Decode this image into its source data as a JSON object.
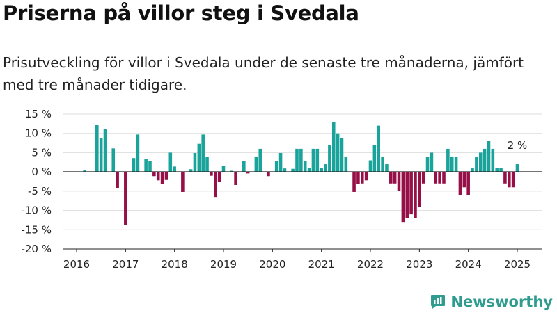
{
  "title": "Priserna på villor steg i Svedala",
  "subtitle": "Prisutveckling för villor i Svedala under de senaste tre månaderna, jämfört med tre månader tidigare.",
  "brand": "Newsworthy",
  "colors": {
    "positive": "#1aa39a",
    "negative": "#960f47",
    "brand": "#2f9c8f",
    "grid": "#dddddd"
  },
  "chart_data": {
    "type": "bar",
    "x_start": "2016-01",
    "x_end": "2025-01",
    "x_ticks": [
      "2016",
      "2017",
      "2018",
      "2019",
      "2020",
      "2021",
      "2022",
      "2023",
      "2024",
      "2025"
    ],
    "y_ticks": [
      "15 %",
      "10 %",
      "5 %",
      "0 %",
      "-5 %",
      "-10 %",
      "-15 %",
      "-20 %"
    ],
    "ylim": [
      -20,
      15
    ],
    "unit": "%",
    "grid": true,
    "last_value_label": "2 %",
    "series": [
      {
        "values": [
          {
            "x": "2016-03",
            "y": 0.5
          },
          {
            "x": "2016-04",
            "y": 0
          },
          {
            "x": "2016-05",
            "y": 0
          },
          {
            "x": "2016-06",
            "y": 12.2
          },
          {
            "x": "2016-07",
            "y": 8.8
          },
          {
            "x": "2016-08",
            "y": 11.2
          },
          {
            "x": "2016-09",
            "y": 0
          },
          {
            "x": "2016-10",
            "y": 6.1
          },
          {
            "x": "2016-11",
            "y": -4.3
          },
          {
            "x": "2016-12",
            "y": 0
          },
          {
            "x": "2017-01",
            "y": -13.8
          },
          {
            "x": "2017-02",
            "y": 0
          },
          {
            "x": "2017-03",
            "y": 3.6
          },
          {
            "x": "2017-04",
            "y": 9.7
          },
          {
            "x": "2017-05",
            "y": 0
          },
          {
            "x": "2017-06",
            "y": 3.4
          },
          {
            "x": "2017-07",
            "y": 2.8
          },
          {
            "x": "2017-08",
            "y": -1.1
          },
          {
            "x": "2017-09",
            "y": -2.2
          },
          {
            "x": "2017-10",
            "y": -3.1
          },
          {
            "x": "2017-11",
            "y": -2.1
          },
          {
            "x": "2017-12",
            "y": 5.0
          },
          {
            "x": "2018-01",
            "y": 1.4
          },
          {
            "x": "2018-02",
            "y": 0
          },
          {
            "x": "2018-03",
            "y": -5.2
          },
          {
            "x": "2018-04",
            "y": 0
          },
          {
            "x": "2018-05",
            "y": 0.7
          },
          {
            "x": "2018-06",
            "y": 4.9
          },
          {
            "x": "2018-07",
            "y": 7.3
          },
          {
            "x": "2018-08",
            "y": 9.7
          },
          {
            "x": "2018-09",
            "y": 3.9
          },
          {
            "x": "2018-10",
            "y": -1.0
          },
          {
            "x": "2018-11",
            "y": -6.5
          },
          {
            "x": "2018-12",
            "y": -2.6
          },
          {
            "x": "2019-01",
            "y": 1.6
          },
          {
            "x": "2019-02",
            "y": 0
          },
          {
            "x": "2019-03",
            "y": 0.3
          },
          {
            "x": "2019-04",
            "y": -3.4
          },
          {
            "x": "2019-05",
            "y": 0
          },
          {
            "x": "2019-06",
            "y": 2.8
          },
          {
            "x": "2019-07",
            "y": -0.4
          },
          {
            "x": "2019-08",
            "y": 0
          },
          {
            "x": "2019-09",
            "y": 4.0
          },
          {
            "x": "2019-10",
            "y": 6.0
          },
          {
            "x": "2019-11",
            "y": 0
          },
          {
            "x": "2019-12",
            "y": -1.1
          },
          {
            "x": "2020-01",
            "y": 0
          },
          {
            "x": "2020-02",
            "y": 2.9
          },
          {
            "x": "2020-03",
            "y": 4.9
          },
          {
            "x": "2020-04",
            "y": 0.9
          },
          {
            "x": "2020-05",
            "y": 0
          },
          {
            "x": "2020-06",
            "y": 0.8
          },
          {
            "x": "2020-07",
            "y": 6.0
          },
          {
            "x": "2020-08",
            "y": 6.0
          },
          {
            "x": "2020-09",
            "y": 2.8
          },
          {
            "x": "2020-10",
            "y": 1.0
          },
          {
            "x": "2020-11",
            "y": 6.0
          },
          {
            "x": "2020-12",
            "y": 6.0
          },
          {
            "x": "2021-01",
            "y": 1.0
          },
          {
            "x": "2021-02",
            "y": 2.0
          },
          {
            "x": "2021-03",
            "y": 7.0
          },
          {
            "x": "2021-04",
            "y": 13.0
          },
          {
            "x": "2021-05",
            "y": 10.0
          },
          {
            "x": "2021-06",
            "y": 8.8
          },
          {
            "x": "2021-07",
            "y": 4.0
          },
          {
            "x": "2021-08",
            "y": 0
          },
          {
            "x": "2021-09",
            "y": -5.2
          },
          {
            "x": "2021-10",
            "y": -3.2
          },
          {
            "x": "2021-11",
            "y": -3.0
          },
          {
            "x": "2021-12",
            "y": -2.2
          },
          {
            "x": "2022-01",
            "y": 3.0
          },
          {
            "x": "2022-02",
            "y": 7.0
          },
          {
            "x": "2022-03",
            "y": 12.0
          },
          {
            "x": "2022-04",
            "y": 4.0
          },
          {
            "x": "2022-05",
            "y": 2.0
          },
          {
            "x": "2022-06",
            "y": -3.0
          },
          {
            "x": "2022-07",
            "y": -3.0
          },
          {
            "x": "2022-08",
            "y": -5.0
          },
          {
            "x": "2022-09",
            "y": -13.0
          },
          {
            "x": "2022-10",
            "y": -12.0
          },
          {
            "x": "2022-11",
            "y": -11.0
          },
          {
            "x": "2022-12",
            "y": -12.0
          },
          {
            "x": "2023-01",
            "y": -9.0
          },
          {
            "x": "2023-02",
            "y": -3.0
          },
          {
            "x": "2023-03",
            "y": 4.0
          },
          {
            "x": "2023-04",
            "y": 5.0
          },
          {
            "x": "2023-05",
            "y": -3.0
          },
          {
            "x": "2023-06",
            "y": -3.0
          },
          {
            "x": "2023-07",
            "y": -3.0
          },
          {
            "x": "2023-08",
            "y": 6.0
          },
          {
            "x": "2023-09",
            "y": 4.0
          },
          {
            "x": "2023-10",
            "y": 4.0
          },
          {
            "x": "2023-11",
            "y": -6.0
          },
          {
            "x": "2023-12",
            "y": -4.0
          },
          {
            "x": "2024-01",
            "y": -6.0
          },
          {
            "x": "2024-02",
            "y": 1.0
          },
          {
            "x": "2024-03",
            "y": 4.0
          },
          {
            "x": "2024-04",
            "y": 5.0
          },
          {
            "x": "2024-05",
            "y": 6.0
          },
          {
            "x": "2024-06",
            "y": 8.0
          },
          {
            "x": "2024-07",
            "y": 6.0
          },
          {
            "x": "2024-08",
            "y": 1.0
          },
          {
            "x": "2024-09",
            "y": 1.0
          },
          {
            "x": "2024-10",
            "y": -3.0
          },
          {
            "x": "2024-11",
            "y": -4.0
          },
          {
            "x": "2024-12",
            "y": -4.0
          },
          {
            "x": "2025-01",
            "y": 2.0
          }
        ]
      }
    ]
  }
}
